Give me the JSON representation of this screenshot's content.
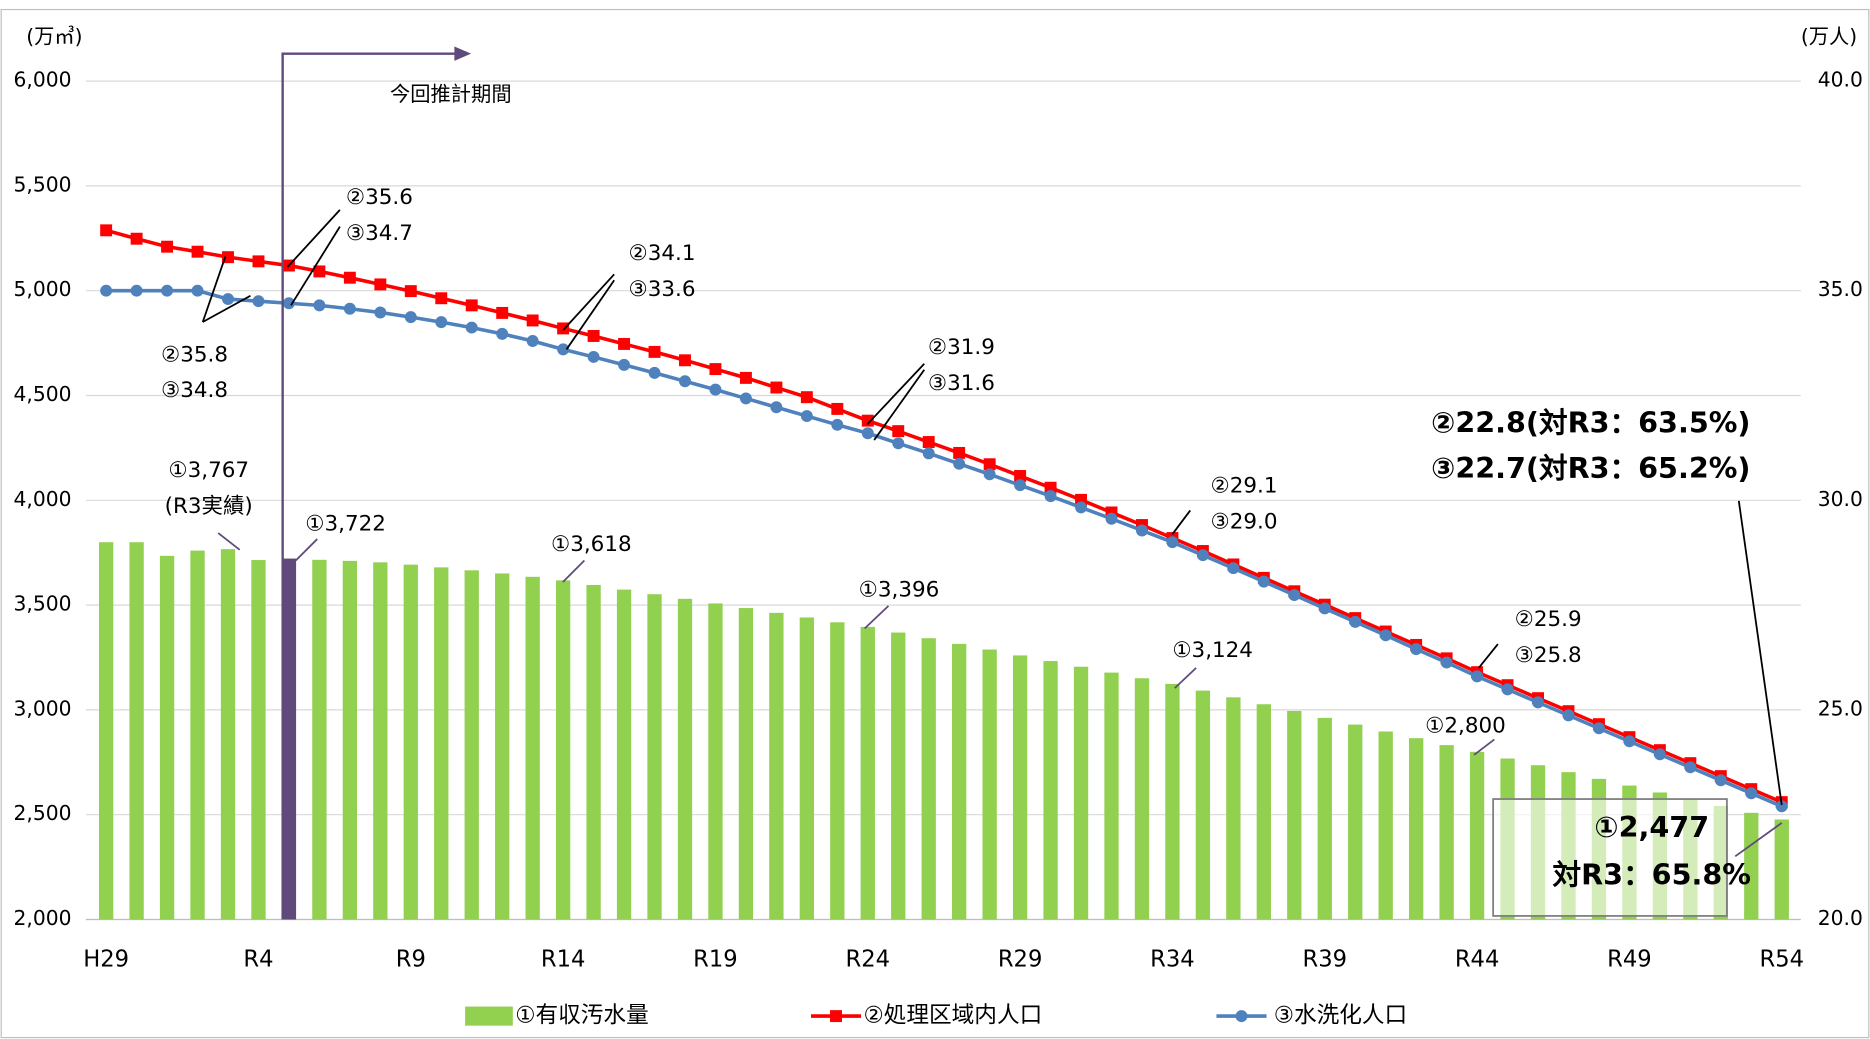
{
  "chart_data": {
    "type": "bar",
    "categories": [
      "H29",
      null,
      null,
      null,
      null,
      "R4",
      null,
      null,
      null,
      null,
      "R9",
      null,
      null,
      null,
      null,
      "R14",
      null,
      null,
      null,
      null,
      "R19",
      null,
      null,
      null,
      null,
      "R24",
      null,
      null,
      null,
      null,
      "R29",
      null,
      null,
      null,
      null,
      "R34",
      null,
      null,
      null,
      null,
      "R39",
      null,
      null,
      null,
      null,
      "R44",
      null,
      null,
      null,
      null,
      "R49",
      null,
      null,
      null,
      null,
      "R54"
    ],
    "ylabel": "(万㎥)",
    "y2label": "(万人)",
    "ylim": [
      2000,
      6000
    ],
    "yticks": [
      {
        "value": 2000,
        "label": "2,000"
      },
      {
        "value": 2500,
        "label": "2,500"
      },
      {
        "value": 3000,
        "label": "3,000"
      },
      {
        "value": 3500,
        "label": "3,500"
      },
      {
        "value": 4000,
        "label": "4,000"
      },
      {
        "value": 4500,
        "label": "4,500"
      },
      {
        "value": 5000,
        "label": "5,000"
      },
      {
        "value": 5500,
        "label": "5,500"
      },
      {
        "value": 6000,
        "label": "6,000"
      }
    ],
    "y2lim": [
      20,
      40
    ],
    "y2ticks": [
      {
        "value": 20,
        "label": "20.0"
      },
      {
        "value": 25,
        "label": "25.0"
      },
      {
        "value": 30,
        "label": "30.0"
      },
      {
        "value": 35,
        "label": "35.0"
      },
      {
        "value": 40,
        "label": "40.0"
      }
    ],
    "grid": true,
    "legend": "bottom",
    "series": [
      {
        "name": "①有収汚水量",
        "type": "bar",
        "color": "#92d050",
        "highlight": {
          "index": 6,
          "color": "#604a7b"
        },
        "values": [
          3800,
          3800,
          3735,
          3760,
          3767,
          3715,
          3722,
          3716,
          3711,
          3704,
          3693,
          3680,
          3666,
          3651,
          3635,
          3618,
          3596,
          3574,
          3552,
          3530,
          3508,
          3486,
          3463,
          3441,
          3418,
          3396,
          3369,
          3342,
          3315,
          3288,
          3260,
          3233,
          3206,
          3178,
          3151,
          3124,
          3092,
          3060,
          3027,
          2995,
          2962,
          2930,
          2897,
          2865,
          2832,
          2800,
          2768,
          2736,
          2703,
          2671,
          2639,
          2606,
          2574,
          2542,
          2509,
          2477
        ]
      },
      {
        "name": "②処理区域内人口",
        "type": "line",
        "axis": "y2",
        "color": "#ff0000",
        "marker": "square",
        "values": [
          36.44,
          36.24,
          36.05,
          35.93,
          35.8,
          35.7,
          35.6,
          35.46,
          35.31,
          35.15,
          34.99,
          34.82,
          34.65,
          34.47,
          34.29,
          34.1,
          33.92,
          33.73,
          33.54,
          33.34,
          33.13,
          32.92,
          32.69,
          32.46,
          32.18,
          31.9,
          31.65,
          31.39,
          31.13,
          30.86,
          30.58,
          30.3,
          30.01,
          29.71,
          29.41,
          29.1,
          28.79,
          28.47,
          28.15,
          27.83,
          27.51,
          27.19,
          26.87,
          26.55,
          26.23,
          25.9,
          25.59,
          25.28,
          24.97,
          24.66,
          24.35,
          24.04,
          23.73,
          23.42,
          23.11,
          22.8
        ]
      },
      {
        "name": "③水洗化人口",
        "type": "line",
        "axis": "y2",
        "color": "#4f81bd",
        "marker": "circle",
        "values": [
          35.0,
          35.0,
          35.0,
          35.0,
          34.8,
          34.75,
          34.7,
          34.65,
          34.57,
          34.48,
          34.37,
          34.25,
          34.12,
          33.97,
          33.8,
          33.6,
          33.42,
          33.23,
          33.04,
          32.84,
          32.64,
          32.43,
          32.22,
          32.01,
          31.8,
          31.6,
          31.36,
          31.12,
          30.87,
          30.62,
          30.36,
          30.1,
          29.83,
          29.56,
          29.28,
          29.0,
          28.69,
          28.38,
          28.06,
          27.74,
          27.42,
          27.1,
          26.78,
          26.45,
          26.13,
          25.8,
          25.49,
          25.18,
          24.87,
          24.56,
          24.25,
          23.94,
          23.63,
          23.32,
          23.01,
          22.7
        ]
      }
    ],
    "period_label": "今回推計期間",
    "annotations": [
      {
        "lines": [
          "①3,767",
          "(R3実績)"
        ]
      },
      {
        "lines": [
          "①3,722"
        ]
      },
      {
        "lines": [
          "①3,618"
        ]
      },
      {
        "lines": [
          "①3,396"
        ]
      },
      {
        "lines": [
          "①3,124"
        ]
      },
      {
        "lines": [
          "①2,800"
        ]
      },
      {
        "lines": [
          "①2,477",
          "対R3：65.8%"
        ]
      },
      {
        "lines": [
          "②35.8",
          "③34.8"
        ]
      },
      {
        "lines": [
          "②35.6",
          "③34.7"
        ]
      },
      {
        "lines": [
          "②34.1",
          "③33.6"
        ]
      },
      {
        "lines": [
          "②31.9",
          "③31.6"
        ]
      },
      {
        "lines": [
          "②29.1",
          "③29.0"
        ]
      },
      {
        "lines": [
          "②25.9",
          "③25.8"
        ]
      },
      {
        "lines": [
          "②22.8(対R3：63.5%)",
          "③22.7(対R3：65.2%)"
        ]
      }
    ]
  }
}
